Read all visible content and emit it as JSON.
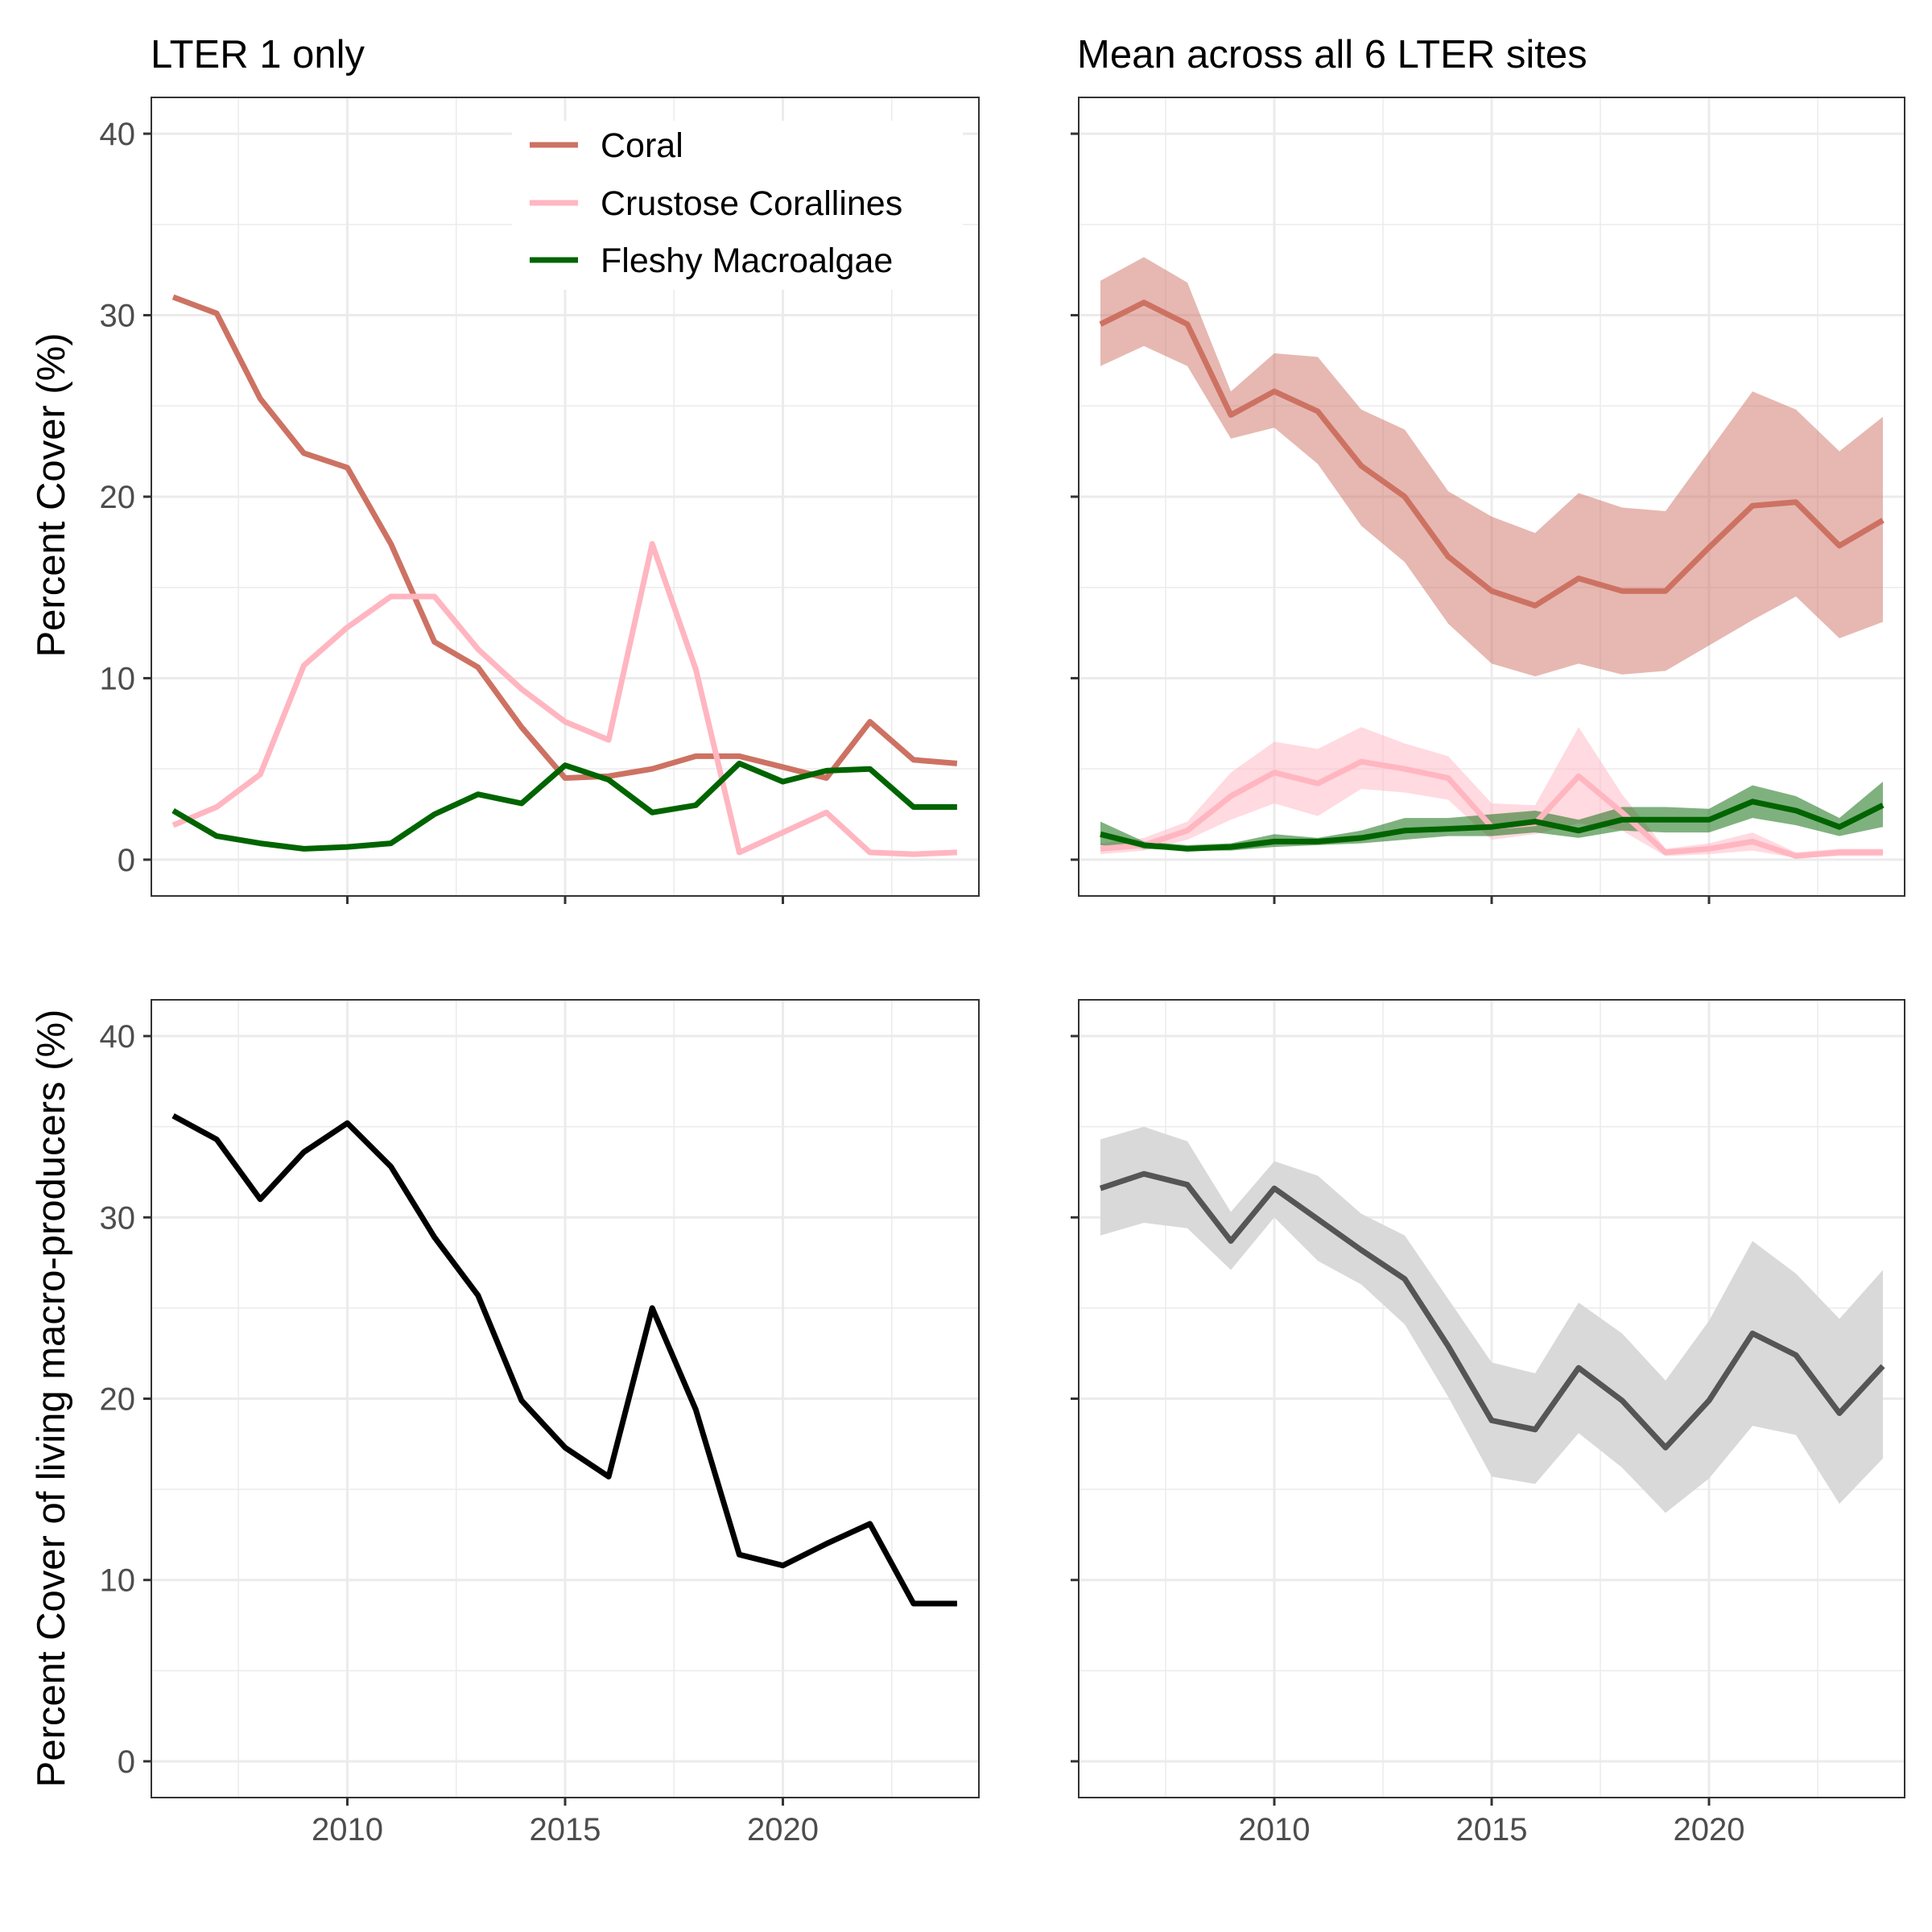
{
  "figure": {
    "y_label_top": "Percent Cover (%)",
    "y_label_bottom": "Percent Cover of living macro-producers (%)"
  },
  "legend": {
    "items": [
      {
        "label": "Coral",
        "color": "#cd7263"
      },
      {
        "label": "Crustose Corallines",
        "color": "#ffb6c1"
      },
      {
        "label": "Fleshy Macroalgae",
        "color": "#006400"
      }
    ]
  },
  "chart_data": [
    {
      "type": "line",
      "title": "LTER 1 only",
      "xlabel": "",
      "ylabel": "Percent Cover (%)",
      "xlim": [
        2005.5,
        2024.5
      ],
      "ylim": [
        -2,
        42
      ],
      "x_ticks": [
        2010,
        2015,
        2020
      ],
      "y_ticks": [
        0,
        10,
        20,
        30,
        40
      ],
      "grid": true,
      "legend": "top-center",
      "x": [
        2006,
        2007,
        2008,
        2009,
        2010,
        2011,
        2012,
        2013,
        2014,
        2015,
        2016,
        2017,
        2018,
        2019,
        2020,
        2021,
        2022,
        2023,
        2024
      ],
      "series": [
        {
          "name": "Coral",
          "color": "#cd7263",
          "values": [
            31.0,
            30.1,
            25.4,
            22.4,
            21.6,
            17.4,
            12.0,
            10.6,
            7.3,
            4.5,
            4.6,
            5.0,
            5.7,
            5.7,
            5.1,
            4.5,
            7.6,
            5.5,
            5.3
          ]
        },
        {
          "name": "Crustose Corallines",
          "color": "#ffb6c1",
          "values": [
            1.9,
            2.9,
            4.7,
            10.7,
            12.8,
            14.5,
            14.5,
            11.6,
            9.4,
            7.6,
            6.6,
            17.4,
            10.5,
            0.4,
            1.5,
            2.6,
            0.4,
            0.3,
            0.4
          ]
        },
        {
          "name": "Fleshy Macroalgae",
          "color": "#006400",
          "values": [
            2.7,
            1.3,
            0.9,
            0.6,
            0.7,
            0.9,
            2.5,
            3.6,
            3.1,
            5.2,
            4.4,
            2.6,
            3.0,
            5.3,
            4.3,
            4.9,
            5.0,
            2.9,
            2.9
          ]
        }
      ]
    },
    {
      "type": "area",
      "title": "Mean across all 6 LTER sites",
      "xlabel": "",
      "ylabel": "Percent Cover (%)",
      "xlim": [
        2005.5,
        2024.5
      ],
      "ylim": [
        -2,
        42
      ],
      "x_ticks": [
        2010,
        2015,
        2020
      ],
      "y_ticks": [
        0,
        10,
        20,
        30,
        40
      ],
      "grid": true,
      "x": [
        2006,
        2007,
        2008,
        2009,
        2010,
        2011,
        2012,
        2013,
        2014,
        2015,
        2016,
        2017,
        2018,
        2019,
        2020,
        2021,
        2022,
        2023,
        2024
      ],
      "series": [
        {
          "name": "Coral",
          "color": "#cd7263",
          "values": [
            29.5,
            30.7,
            29.5,
            24.5,
            25.8,
            24.7,
            21.7,
            20.0,
            16.7,
            14.8,
            14.0,
            15.5,
            14.8,
            14.8,
            17.2,
            19.5,
            19.7,
            17.3,
            18.7
          ],
          "lower": [
            27.2,
            28.3,
            27.2,
            23.2,
            23.8,
            21.8,
            18.4,
            16.4,
            13.0,
            10.8,
            10.1,
            10.8,
            10.2,
            10.4,
            11.8,
            13.2,
            14.5,
            12.2,
            13.1
          ],
          "upper": [
            31.9,
            33.2,
            31.8,
            25.8,
            27.9,
            27.7,
            24.8,
            23.7,
            20.3,
            18.9,
            18.0,
            20.2,
            19.4,
            19.2,
            22.5,
            25.8,
            24.8,
            22.5,
            24.4
          ]
        },
        {
          "name": "Crustose Corallines",
          "color": "#ffb6c1",
          "values": [
            0.6,
            0.8,
            1.6,
            3.5,
            4.8,
            4.2,
            5.4,
            5.0,
            4.5,
            1.8,
            2.0,
            4.6,
            2.6,
            0.4,
            0.6,
            1.0,
            0.2,
            0.4,
            0.4
          ],
          "lower": [
            0.3,
            0.5,
            1.1,
            2.2,
            3.1,
            2.4,
            3.9,
            3.7,
            3.3,
            1.1,
            1.4,
            2.0,
            1.6,
            0.2,
            0.3,
            0.5,
            0.1,
            0.2,
            0.2
          ],
          "upper": [
            0.9,
            1.2,
            2.1,
            4.8,
            6.5,
            6.1,
            7.3,
            6.4,
            5.7,
            3.1,
            3.0,
            7.3,
            3.6,
            0.6,
            0.9,
            1.5,
            0.4,
            0.6,
            0.6
          ]
        },
        {
          "name": "Fleshy Macroalgae",
          "color": "#006400",
          "values": [
            1.4,
            0.8,
            0.6,
            0.7,
            1.0,
            1.0,
            1.2,
            1.6,
            1.7,
            1.8,
            2.1,
            1.6,
            2.2,
            2.2,
            2.2,
            3.2,
            2.7,
            1.8,
            3.0
          ],
          "lower": [
            0.8,
            0.6,
            0.5,
            0.5,
            0.7,
            0.8,
            0.9,
            1.1,
            1.3,
            1.3,
            1.5,
            1.2,
            1.6,
            1.5,
            1.5,
            2.3,
            1.9,
            1.3,
            1.8
          ],
          "upper": [
            2.1,
            1.0,
            0.8,
            0.9,
            1.4,
            1.2,
            1.6,
            2.3,
            2.3,
            2.5,
            2.7,
            2.2,
            2.9,
            2.9,
            2.8,
            4.1,
            3.5,
            2.3,
            4.3
          ]
        }
      ]
    },
    {
      "type": "line",
      "title": "",
      "xlabel": "",
      "ylabel": "Percent Cover of living macro-producers (%)",
      "xlim": [
        2005.5,
        2024.5
      ],
      "ylim": [
        -2,
        42
      ],
      "x_ticks": [
        2010,
        2015,
        2020
      ],
      "y_ticks": [
        0,
        10,
        20,
        30,
        40
      ],
      "grid": true,
      "x": [
        2006,
        2007,
        2008,
        2009,
        2010,
        2011,
        2012,
        2013,
        2014,
        2015,
        2016,
        2017,
        2018,
        2019,
        2020,
        2021,
        2022,
        2023,
        2024
      ],
      "series": [
        {
          "color": "#000000",
          "values": [
            35.6,
            34.3,
            31.0,
            33.6,
            35.2,
            32.8,
            28.9,
            25.7,
            19.9,
            17.3,
            15.7,
            25.0,
            19.4,
            11.4,
            10.8,
            12.0,
            13.1,
            8.7,
            8.7
          ]
        }
      ]
    },
    {
      "type": "area",
      "title": "",
      "xlabel": "",
      "ylabel": "Percent Cover of living macro-producers (%)",
      "xlim": [
        2005.5,
        2024.5
      ],
      "ylim": [
        -2,
        42
      ],
      "x_ticks": [
        2010,
        2015,
        2020
      ],
      "y_ticks": [
        0,
        10,
        20,
        30,
        40
      ],
      "grid": true,
      "x": [
        2006,
        2007,
        2008,
        2009,
        2010,
        2011,
        2012,
        2013,
        2014,
        2015,
        2016,
        2017,
        2018,
        2019,
        2020,
        2021,
        2022,
        2023,
        2024
      ],
      "series": [
        {
          "color": "#555555",
          "band_color": "#d9d9d9",
          "values": [
            31.6,
            32.4,
            31.8,
            28.7,
            31.6,
            29.9,
            28.2,
            26.6,
            22.9,
            18.8,
            18.3,
            21.7,
            19.9,
            17.3,
            19.9,
            23.6,
            22.4,
            19.2,
            21.8
          ],
          "lower": [
            29.0,
            29.7,
            29.4,
            27.1,
            30.0,
            27.6,
            26.3,
            24.1,
            20.1,
            15.7,
            15.3,
            18.1,
            16.2,
            13.7,
            15.6,
            18.5,
            18.0,
            14.2,
            16.7
          ],
          "upper": [
            34.3,
            35.0,
            34.2,
            30.3,
            33.1,
            32.3,
            30.2,
            29.0,
            25.5,
            22.0,
            21.4,
            25.3,
            23.6,
            21.0,
            24.3,
            28.7,
            26.9,
            24.4,
            27.1
          ]
        }
      ]
    }
  ]
}
